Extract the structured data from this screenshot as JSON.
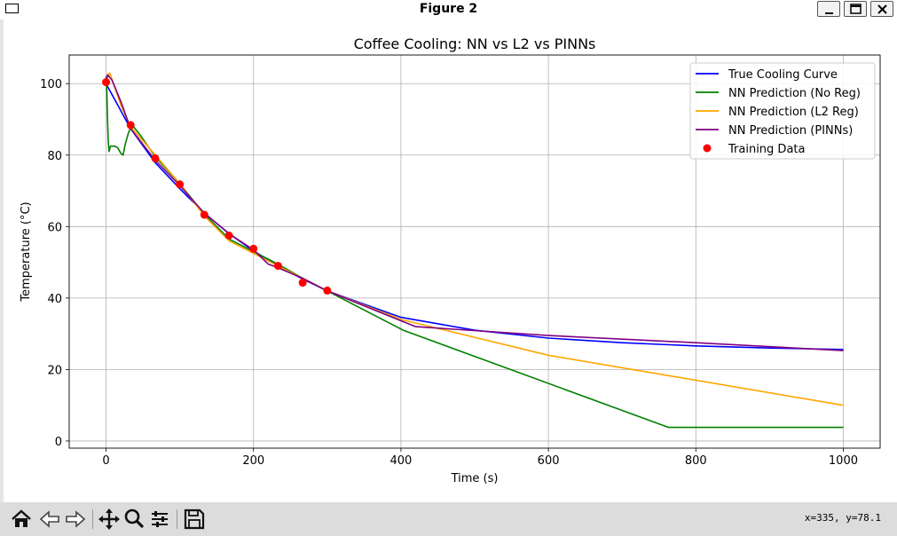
{
  "window": {
    "title": "Figure 2"
  },
  "toolbar": {
    "icons": [
      "home-icon",
      "back-icon",
      "forward-icon",
      "pan-icon",
      "zoom-icon",
      "configure-subplots-icon",
      "save-icon"
    ],
    "coords": "x=335, y=78.1"
  },
  "chart_data": {
    "type": "line",
    "title": "Coffee Cooling: NN vs L2 vs PINNs",
    "xlabel": "Time (s)",
    "ylabel": "Temperature (°C)",
    "xlim": [
      -50,
      1050
    ],
    "ylim": [
      -2,
      108
    ],
    "xticks": [
      0,
      200,
      400,
      600,
      800,
      1000
    ],
    "yticks": [
      0,
      20,
      40,
      60,
      80,
      100
    ],
    "grid": true,
    "legend_position": "top-right",
    "series": [
      {
        "name": "True Cooling Curve",
        "color": "#0000ff",
        "style": "line",
        "x": [
          0,
          33,
          67,
          100,
          133,
          167,
          200,
          233,
          267,
          300,
          400,
          500,
          600,
          700,
          800,
          900,
          1000
        ],
        "y": [
          100,
          87.5,
          77.8,
          70.6,
          63.8,
          58.0,
          53.2,
          49.0,
          45.3,
          42.0,
          34.6,
          31.0,
          28.8,
          27.5,
          26.6,
          26.0,
          25.6
        ]
      },
      {
        "name": "NN Prediction (No Reg)",
        "color": "#008000",
        "style": "line",
        "x": [
          0,
          1,
          2,
          3,
          4,
          6,
          8,
          12,
          16,
          20,
          23,
          26,
          30,
          35,
          45,
          67,
          100,
          133,
          167,
          200,
          233,
          267,
          300,
          403,
          763,
          1000
        ],
        "y": [
          102,
          98,
          90,
          84,
          81,
          82.5,
          82.5,
          82.5,
          82,
          80.5,
          80,
          83,
          86,
          88.5,
          86,
          79.5,
          72,
          63.5,
          56.5,
          53,
          49.5,
          45.5,
          42,
          31,
          3.8,
          3.8
        ]
      },
      {
        "name": "NN Prediction (L2 Reg)",
        "color": "#ffa500",
        "style": "line",
        "x": [
          0,
          5,
          10,
          20,
          33,
          67,
          100,
          133,
          167,
          200,
          233,
          267,
          300,
          400,
          600,
          1000
        ],
        "y": [
          101,
          103,
          100,
          94,
          88,
          80,
          72,
          63,
          56,
          52.5,
          49,
          45.5,
          42,
          34,
          24,
          10
        ]
      },
      {
        "name": "NN Prediction (PINNs)",
        "color": "#800080",
        "style": "line",
        "x": [
          0,
          2,
          8,
          20,
          33,
          67,
          100,
          133,
          167,
          200,
          220,
          233,
          267,
          300,
          420,
          600,
          800,
          1000
        ],
        "y": [
          100.5,
          102.5,
          101,
          95,
          87.5,
          78.5,
          71.5,
          63.8,
          58,
          53.5,
          49.5,
          48.5,
          45.5,
          42,
          32,
          29.5,
          27.5,
          25.3
        ]
      },
      {
        "name": "Training Data",
        "color": "#ff0000",
        "style": "scatter",
        "x": [
          0,
          33.3,
          66.7,
          100,
          133.3,
          166.7,
          200,
          233.3,
          266.7,
          300
        ],
        "y": [
          100.4,
          88.4,
          79.1,
          71.8,
          63.3,
          57.5,
          53.8,
          49.0,
          44.3,
          42.1
        ]
      }
    ]
  }
}
